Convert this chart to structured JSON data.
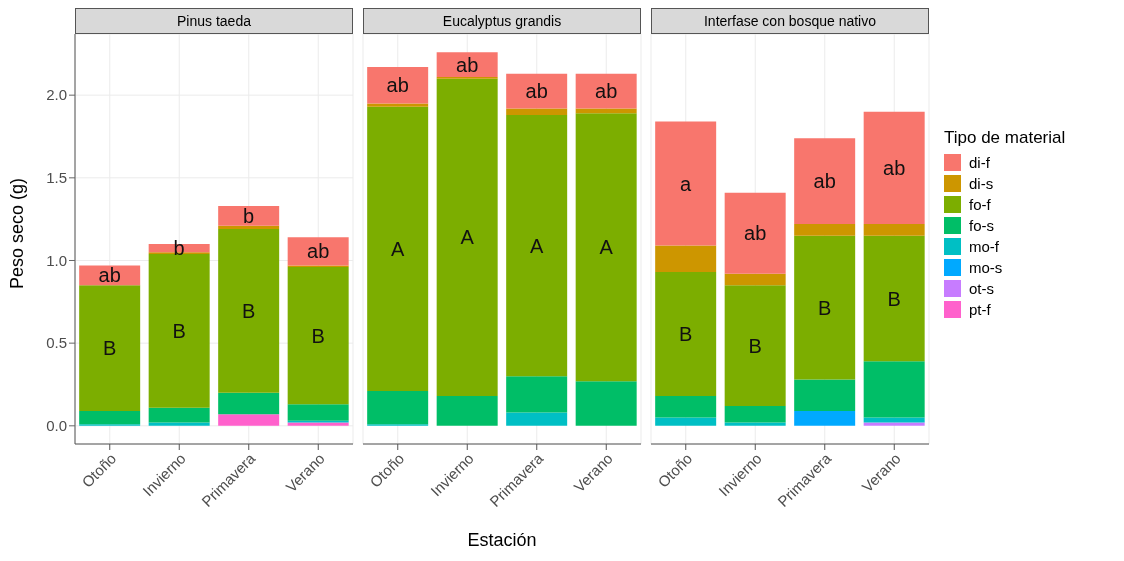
{
  "chart_data": [
    {
      "type": "bar",
      "stacked": true,
      "title": "Pinus taeda",
      "ylabel": "Peso seco (g)",
      "categories": [
        "Otoño",
        "Invierno",
        "Primavera",
        "Verano"
      ],
      "ylim": [
        -0.11,
        2.37
      ],
      "yticks": [
        {
          "value": 0,
          "label": "0.0"
        },
        0.5,
        {
          "value": 1,
          "label": "1.0"
        },
        1.5,
        {
          "value": 2,
          "label": "2.0"
        }
      ],
      "grid": true,
      "series": [
        {
          "color": "#ff61cc",
          "values": [
            0,
            0,
            0.07,
            0.02
          ]
        },
        {
          "color": "#c77cff",
          "values": [
            0,
            0,
            0,
            0
          ]
        },
        {
          "color": "#00a9ff",
          "values": [
            0,
            0,
            0,
            0
          ]
        },
        {
          "color": "#00bfc4",
          "values": [
            0.01,
            0.02,
            0,
            0.01
          ]
        },
        {
          "color": "#00be67",
          "values": [
            0.08,
            0.09,
            0.13,
            0.1
          ]
        },
        {
          "color": "#7cae00",
          "values": [
            0.76,
            0.93,
            0.99,
            0.83
          ],
          "value_labels": [
            "B",
            "B",
            "B",
            "B"
          ]
        },
        {
          "color": "#cd9600",
          "values": [
            0,
            0.01,
            0.02,
            0.01
          ]
        },
        {
          "color": "#f8766d",
          "values": [
            0.12,
            0.05,
            0.12,
            0.17
          ],
          "value_labels": [
            "ab",
            "b",
            "b",
            "ab"
          ]
        }
      ]
    },
    {
      "type": "bar",
      "stacked": true,
      "title": "Eucalyptus grandis",
      "xlabel": "Estación",
      "categories": [
        "Otoño",
        "Invierno",
        "Primavera",
        "Verano"
      ],
      "ylim": [
        -0.11,
        2.37
      ],
      "yticks": [
        0,
        0.5,
        1,
        1.5,
        2
      ],
      "grid": true,
      "tick_labels": "x",
      "series": [
        {
          "color": "#ff61cc",
          "values": [
            0,
            0,
            0,
            0
          ]
        },
        {
          "color": "#c77cff",
          "values": [
            0,
            0,
            0,
            0
          ]
        },
        {
          "color": "#00a9ff",
          "values": [
            0,
            0,
            0,
            0
          ]
        },
        {
          "color": "#00bfc4",
          "values": [
            0.01,
            0,
            0.08,
            0
          ]
        },
        {
          "color": "#00be67",
          "values": [
            0.2,
            0.18,
            0.22,
            0.27
          ]
        },
        {
          "color": "#7cae00",
          "values": [
            1.72,
            1.92,
            1.58,
            1.62
          ],
          "value_labels": [
            "A",
            "A",
            "A",
            "A"
          ]
        },
        {
          "color": "#cd9600",
          "values": [
            0.02,
            0.01,
            0.04,
            0.03
          ]
        },
        {
          "color": "#f8766d",
          "values": [
            0.22,
            0.15,
            0.21,
            0.21
          ],
          "value_labels": [
            "ab",
            "ab",
            "ab",
            "ab"
          ]
        }
      ]
    },
    {
      "type": "bar",
      "stacked": true,
      "title": "Interfase con bosque nativo",
      "legend": "right",
      "legend_title": "Tipo de material",
      "categories": [
        "Otoño",
        "Invierno",
        "Primavera",
        "Verano"
      ],
      "ylim": [
        -0.11,
        2.37
      ],
      "yticks": [
        0,
        0.5,
        1,
        1.5,
        2
      ],
      "grid": true,
      "tick_labels": "x",
      "series": [
        {
          "name": "pt-f",
          "color": "#ff61cc",
          "values": [
            0,
            0,
            0,
            0
          ]
        },
        {
          "name": "ot-s",
          "color": "#c77cff",
          "values": [
            0,
            0,
            0,
            0.02
          ]
        },
        {
          "name": "mo-s",
          "color": "#00a9ff",
          "values": [
            0,
            0,
            0.09,
            0
          ]
        },
        {
          "name": "mo-f",
          "color": "#00bfc4",
          "values": [
            0.05,
            0.02,
            0,
            0.03
          ]
        },
        {
          "name": "fo-s",
          "color": "#00be67",
          "values": [
            0.13,
            0.1,
            0.19,
            0.34
          ]
        },
        {
          "name": "fo-f",
          "color": "#7cae00",
          "values": [
            0.75,
            0.73,
            0.87,
            0.76
          ],
          "value_labels": [
            "B",
            "B",
            "B",
            "B"
          ]
        },
        {
          "name": "di-s",
          "color": "#cd9600",
          "values": [
            0.16,
            0.07,
            0.07,
            0.07
          ]
        },
        {
          "name": "di-f",
          "color": "#f8766d",
          "values": [
            0.75,
            0.49,
            0.52,
            0.68
          ],
          "value_labels": [
            "a",
            "ab",
            "ab",
            "ab"
          ]
        }
      ]
    }
  ]
}
